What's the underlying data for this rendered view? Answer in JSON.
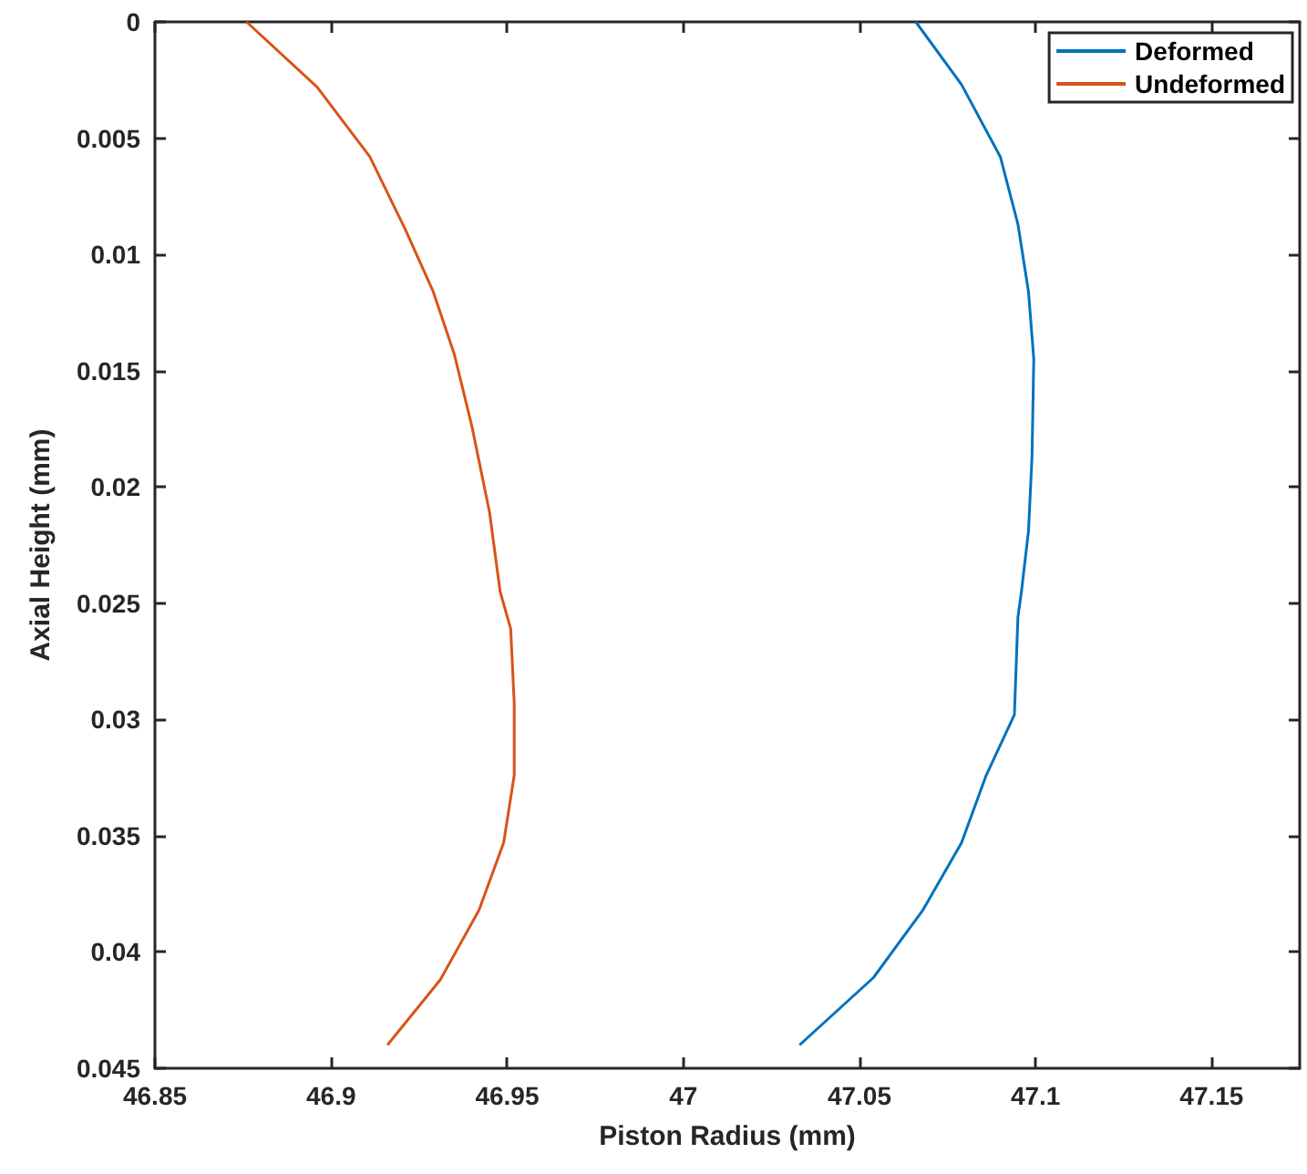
{
  "chart_data": {
    "type": "line",
    "xlabel": "Piston Radius (mm)",
    "ylabel": "Axial Height (mm)",
    "xlim": [
      46.85,
      47.175
    ],
    "xticks": [
      46.85,
      46.9,
      46.95,
      47,
      47.05,
      47.1,
      47.15
    ],
    "ylim": [
      0.045,
      0
    ],
    "yticks": [
      0,
      0.005,
      0.01,
      0.015,
      0.02,
      0.025,
      0.03,
      0.035,
      0.04,
      0.045
    ],
    "grid": false,
    "legend": "top right",
    "marker": "none",
    "line_style": "solid",
    "series": [
      {
        "name": "Deformed",
        "color": "#0072bd",
        "x": [
          47.066,
          47.079,
          47.09,
          47.095,
          47.098,
          47.0995,
          47.099,
          47.098,
          47.096,
          47.095,
          47.094,
          47.086,
          47.079,
          47.068,
          47.054,
          47.033
        ],
        "values": [
          0,
          0.0027,
          0.0058,
          0.0087,
          0.0116,
          0.0145,
          0.0187,
          0.0219,
          0.0245,
          0.0256,
          0.0298,
          0.0324,
          0.0353,
          0.0382,
          0.0411,
          0.044
        ]
      },
      {
        "name": "Undeformed",
        "color": "#d95319",
        "x": [
          46.876,
          46.896,
          46.911,
          46.921,
          46.929,
          46.935,
          46.94,
          46.945,
          46.948,
          46.951,
          46.952,
          46.952,
          46.949,
          46.942,
          46.931,
          46.916
        ],
        "values": [
          0,
          0.0028,
          0.0058,
          0.0089,
          0.0116,
          0.0143,
          0.0174,
          0.0211,
          0.0245,
          0.0261,
          0.0293,
          0.0324,
          0.0353,
          0.0382,
          0.0412,
          0.044
        ]
      }
    ]
  }
}
